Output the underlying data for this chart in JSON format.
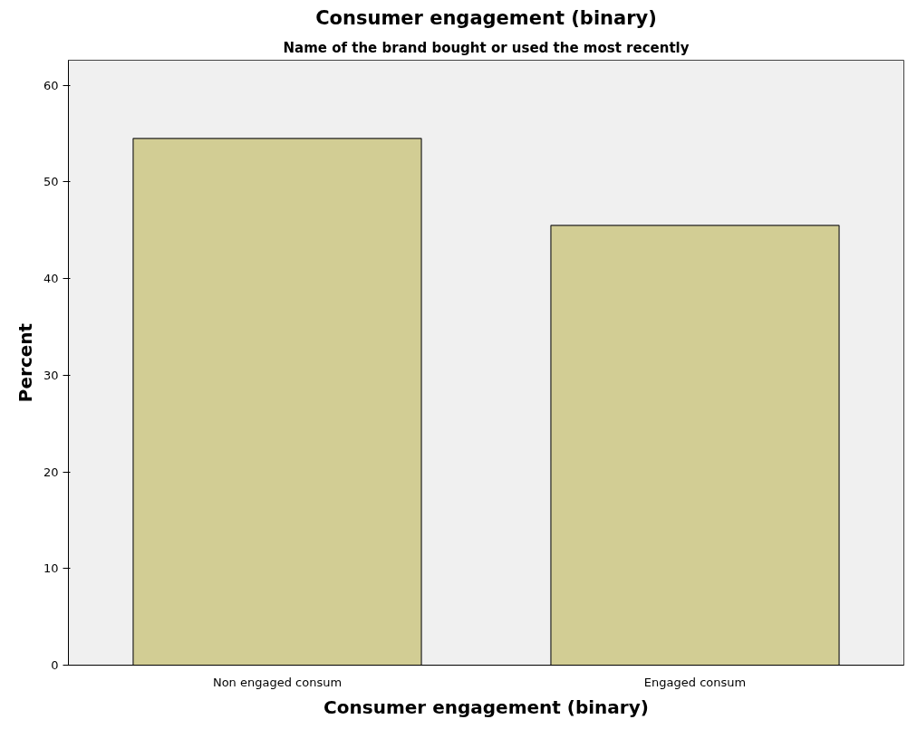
{
  "chart_data": {
    "type": "bar",
    "title": "Consumer engagement (binary)",
    "subtitle": "Name of the brand bought or used the most recently",
    "xlabel": "Consumer engagement (binary)",
    "ylabel": "Percent",
    "categories": [
      "Non engaged consum",
      "Engaged consum"
    ],
    "values": [
      54.5,
      45.5
    ],
    "color": "#d2cd94",
    "ylim": [
      0,
      62.6
    ],
    "yticks": [
      0,
      10,
      20,
      30,
      40,
      50,
      60
    ],
    "grid": false
  }
}
